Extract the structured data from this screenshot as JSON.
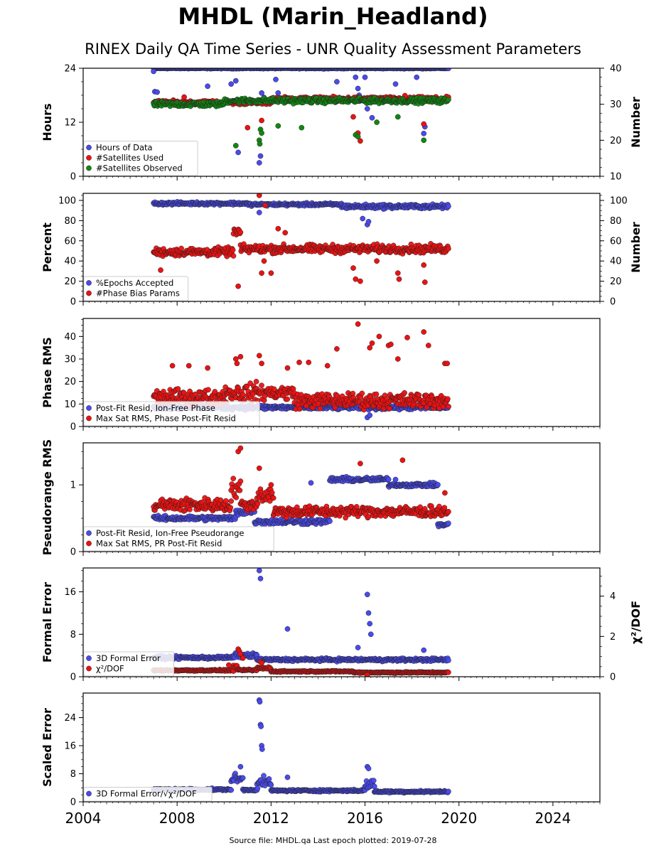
{
  "title": "MHDL (Marin_Headland)",
  "subtitle": "RINEX Daily QA Time Series - UNR Quality Assessment Parameters",
  "footer": "Source file: MHDL.qa Last epoch plotted: 2019-07-28",
  "colors": {
    "blue": "#4a4af0",
    "red": "#ee1111",
    "green": "#118811"
  },
  "chart_data": [
    {
      "type": "scatter",
      "ylabel": "Hours",
      "y2label": "Number",
      "xlim": [
        2004,
        2026
      ],
      "ylim": [
        0,
        24
      ],
      "y2lim": [
        10,
        40
      ],
      "yticks": [
        "0",
        "12",
        "24"
      ],
      "y2ticks": [
        "10",
        "20",
        "30",
        "40"
      ],
      "legend_position": "lower-left",
      "series": [
        {
          "name": "Hours of Data",
          "color": "blue",
          "axis": "left",
          "segments": [
            [
              2007.0,
              2019.55,
              24.0,
              0.15
            ]
          ],
          "outliers": [
            [
              2007.0,
              23.3
            ],
            [
              2007.05,
              18.8
            ],
            [
              2007.15,
              18.7
            ],
            [
              2009.3,
              20.0
            ],
            [
              2010.3,
              20.5
            ],
            [
              2010.5,
              21.2
            ],
            [
              2010.6,
              5.3
            ],
            [
              2011.5,
              3.0
            ],
            [
              2011.55,
              4.5
            ],
            [
              2011.6,
              18.5
            ],
            [
              2011.7,
              17.5
            ],
            [
              2012.2,
              21.5
            ],
            [
              2012.3,
              18.5
            ],
            [
              2014.8,
              21.0
            ],
            [
              2015.6,
              22.0
            ],
            [
              2015.7,
              19.5
            ],
            [
              2015.75,
              18.0
            ],
            [
              2016.0,
              22.0
            ],
            [
              2016.1,
              15.0
            ],
            [
              2016.3,
              13.0
            ],
            [
              2017.3,
              20.5
            ],
            [
              2018.2,
              22.0
            ],
            [
              2018.5,
              9.5
            ],
            [
              2018.55,
              11.0
            ]
          ]
        },
        {
          "name": "#Satellites Used",
          "color": "red",
          "axis": "right",
          "segments": [
            [
              2007.0,
              2012.0,
              30.5,
              0.8
            ],
            [
              2012.0,
              2019.55,
              31.5,
              0.8
            ]
          ],
          "outliers": [
            [
              2008.3,
              32.0
            ],
            [
              2011.0,
              23.5
            ],
            [
              2011.6,
              25.5
            ],
            [
              2015.5,
              26.5
            ],
            [
              2015.7,
              22.0
            ],
            [
              2015.8,
              19.8
            ],
            [
              2017.7,
              32.4
            ],
            [
              2018.5,
              24.5
            ]
          ]
        },
        {
          "name": "#Satellites Observed",
          "color": "green",
          "axis": "right",
          "segments": [
            [
              2007.0,
              2010.0,
              30.0,
              1.0
            ],
            [
              2010.0,
              2019.55,
              31.0,
              1.0
            ]
          ],
          "outliers": [
            [
              2010.5,
              18.5
            ],
            [
              2011.5,
              20.0
            ],
            [
              2011.52,
              19.0
            ],
            [
              2011.55,
              23.0
            ],
            [
              2011.6,
              22.0
            ],
            [
              2012.3,
              24.0
            ],
            [
              2013.3,
              23.5
            ],
            [
              2015.6,
              21.5
            ],
            [
              2015.7,
              21.0
            ],
            [
              2016.5,
              25.0
            ],
            [
              2017.4,
              26.5
            ],
            [
              2018.5,
              20.0
            ]
          ]
        }
      ]
    },
    {
      "type": "scatter",
      "ylabel": "Percent",
      "y2label": "Number",
      "xlim": [
        2004,
        2026
      ],
      "ylim": [
        0,
        107
      ],
      "y2lim": [
        0,
        107
      ],
      "yticks": [
        "0",
        "20",
        "40",
        "60",
        "80",
        "100"
      ],
      "y2ticks": [
        "0",
        "20",
        "40",
        "60",
        "80",
        "100"
      ],
      "legend_position": "lower-left",
      "series": [
        {
          "name": "%Epochs Accepted",
          "color": "blue",
          "axis": "left",
          "segments": [
            [
              2007.0,
              2011.0,
              97.0,
              2.0
            ],
            [
              2011.0,
              2015.0,
              96.0,
              2.0
            ],
            [
              2015.0,
              2019.55,
              94.0,
              3.0
            ]
          ],
          "outliers": [
            [
              2011.5,
              88.0
            ],
            [
              2015.9,
              82.0
            ],
            [
              2016.1,
              76.0
            ],
            [
              2016.15,
              79.0
            ]
          ]
        },
        {
          "name": "#Phase Bias Params",
          "color": "red",
          "axis": "right",
          "segments": [
            [
              2007.0,
              2010.4,
              49.0,
              6.0
            ],
            [
              2010.4,
              2010.7,
              68.0,
              10.0
            ],
            [
              2010.7,
              2019.55,
              52.0,
              6.0
            ]
          ],
          "outliers": [
            [
              2007.3,
              31.0
            ],
            [
              2010.6,
              15.0
            ],
            [
              2011.5,
              105.0
            ],
            [
              2011.6,
              28.0
            ],
            [
              2011.7,
              40.0
            ],
            [
              2011.75,
              95.0
            ],
            [
              2012.0,
              28.0
            ],
            [
              2012.3,
              72.0
            ],
            [
              2012.6,
              68.0
            ],
            [
              2015.5,
              33.0
            ],
            [
              2015.6,
              22.0
            ],
            [
              2015.8,
              20.0
            ],
            [
              2016.5,
              40.0
            ],
            [
              2017.4,
              28.0
            ],
            [
              2017.45,
              22.0
            ],
            [
              2018.5,
              36.0
            ],
            [
              2018.55,
              19.0
            ]
          ]
        }
      ]
    },
    {
      "type": "scatter",
      "ylabel": "Phase RMS",
      "xlim": [
        2004,
        2026
      ],
      "ylim": [
        0,
        48
      ],
      "yticks": [
        "0",
        "10",
        "20",
        "30",
        "40"
      ],
      "legend_position": "lower-left",
      "series": [
        {
          "name": "Post-Fit Resid, Ion-Free Phase",
          "color": "blue",
          "axis": "left",
          "segments": [
            [
              2007.0,
              2019.55,
              8.5,
              1.5
            ]
          ],
          "outliers": [
            [
              2016.1,
              4.0
            ],
            [
              2016.2,
              5.0
            ]
          ]
        },
        {
          "name": "Max Sat RMS, Phase Post-Fit Resid",
          "color": "red",
          "axis": "left",
          "segments": [
            [
              2007.0,
              2010.0,
              13.0,
              5.0
            ],
            [
              2010.0,
              2011.4,
              15.0,
              6.0
            ],
            [
              2011.4,
              2013.0,
              15.0,
              5.0
            ],
            [
              2013.0,
              2019.55,
              11.5,
              5.0
            ]
          ],
          "outliers": [
            [
              2007.8,
              27.0
            ],
            [
              2008.5,
              27.0
            ],
            [
              2009.3,
              26.0
            ],
            [
              2010.5,
              30.0
            ],
            [
              2010.55,
              28.0
            ],
            [
              2010.7,
              31.0
            ],
            [
              2011.5,
              31.5
            ],
            [
              2011.6,
              28.0
            ],
            [
              2012.7,
              26.0
            ],
            [
              2013.2,
              28.5
            ],
            [
              2013.6,
              28.5
            ],
            [
              2014.4,
              27.0
            ],
            [
              2014.8,
              34.5
            ],
            [
              2015.7,
              45.5
            ],
            [
              2016.2,
              35.0
            ],
            [
              2016.3,
              37.0
            ],
            [
              2016.6,
              40.0
            ],
            [
              2017.0,
              36.0
            ],
            [
              2017.1,
              36.5
            ],
            [
              2017.8,
              39.5
            ],
            [
              2017.4,
              30.0
            ],
            [
              2018.5,
              42.0
            ],
            [
              2018.7,
              36.0
            ],
            [
              2019.4,
              28.0
            ],
            [
              2019.5,
              28.0
            ]
          ]
        }
      ]
    },
    {
      "type": "scatter",
      "ylabel": "Pseudorange RMS",
      "xlim": [
        2004,
        2026
      ],
      "ylim": [
        0,
        1.63
      ],
      "yticks": [
        "0",
        "1"
      ],
      "legend_position": "lower-left",
      "series": [
        {
          "name": "Post-Fit Resid, Ion-Free Pseudorange",
          "color": "blue",
          "axis": "left",
          "segments": [
            [
              2007.0,
              2010.5,
              0.5,
              0.05
            ],
            [
              2010.5,
              2011.3,
              0.6,
              0.08
            ],
            [
              2011.3,
              2014.5,
              0.45,
              0.06
            ],
            [
              2014.5,
              2017.0,
              1.08,
              0.05
            ],
            [
              2017.0,
              2019.1,
              1.0,
              0.04
            ],
            [
              2019.1,
              2019.55,
              0.4,
              0.04
            ]
          ],
          "outliers": [
            [
              2013.7,
              1.03
            ],
            [
              2017.3,
              1.08
            ]
          ]
        },
        {
          "name": "Max Sat RMS, PR Post-Fit Resid",
          "color": "red",
          "axis": "left",
          "segments": [
            [
              2007.0,
              2010.3,
              0.7,
              0.15
            ],
            [
              2010.3,
              2010.7,
              0.95,
              0.2
            ],
            [
              2010.7,
              2011.4,
              0.7,
              0.12
            ],
            [
              2011.4,
              2012.1,
              0.85,
              0.2
            ],
            [
              2012.1,
              2019.55,
              0.6,
              0.12
            ]
          ],
          "outliers": [
            [
              2010.6,
              1.5
            ],
            [
              2010.7,
              1.55
            ],
            [
              2011.5,
              1.25
            ],
            [
              2012.0,
              1.0
            ],
            [
              2015.8,
              1.32
            ],
            [
              2017.6,
              1.37
            ],
            [
              2019.4,
              0.88
            ]
          ]
        }
      ]
    },
    {
      "type": "scatter",
      "ylabel": "Formal Error",
      "y2label": "χ²/DOF",
      "xlim": [
        2004,
        2026
      ],
      "ylim": [
        0,
        20.5
      ],
      "y2lim": [
        0,
        5.4
      ],
      "yticks": [
        "0",
        "8",
        "16"
      ],
      "y2ticks": [
        "0",
        "2",
        "4"
      ],
      "legend_position": "lower-left",
      "series": [
        {
          "name": "3D Formal Error",
          "color": "blue",
          "axis": "left",
          "segments": [
            [
              2007.0,
              2010.4,
              3.6,
              0.4
            ],
            [
              2010.4,
              2011.4,
              4.0,
              0.6
            ],
            [
              2011.4,
              2019.55,
              3.2,
              0.4
            ]
          ],
          "outliers": [
            [
              2011.5,
              20.0
            ],
            [
              2011.55,
              18.5
            ],
            [
              2012.7,
              9.0
            ],
            [
              2015.7,
              5.5
            ],
            [
              2016.1,
              15.5
            ],
            [
              2016.15,
              12.0
            ],
            [
              2016.2,
              10.0
            ],
            [
              2016.25,
              8.0
            ],
            [
              2018.5,
              5.0
            ]
          ]
        },
        {
          "name": "χ²/DOF",
          "color": "red",
          "axis": "left",
          "segments": [
            [
              2007.0,
              2010.4,
              1.2,
              0.2
            ],
            [
              2010.4,
              2010.55,
              2.0,
              0.4
            ],
            [
              2010.55,
              2011.4,
              1.25,
              0.2
            ],
            [
              2011.4,
              2012.0,
              1.6,
              0.4
            ],
            [
              2012.0,
              2015.5,
              1.0,
              0.18
            ],
            [
              2015.5,
              2019.55,
              0.8,
              0.18
            ]
          ],
          "outliers": [
            [
              2010.6,
              5.2
            ],
            [
              2010.65,
              4.8
            ],
            [
              2010.7,
              4.3
            ],
            [
              2010.8,
              3.5
            ],
            [
              2011.55,
              2.8
            ],
            [
              2011.6,
              2.6
            ],
            [
              2010.2,
              2.2
            ],
            [
              2016.1,
              0.3
            ]
          ]
        }
      ]
    },
    {
      "type": "scatter",
      "ylabel": "Scaled Error",
      "xlim": [
        2004,
        2026
      ],
      "ylim": [
        0,
        31
      ],
      "yticks": [
        "0",
        "8",
        "16",
        "24"
      ],
      "xticks": [
        "2004",
        "2008",
        "2012",
        "2016",
        "2020",
        "2024"
      ],
      "legend_position": "lower-left",
      "series": [
        {
          "name": "3D Formal Error/√χ²/DOF",
          "color": "blue",
          "axis": "left",
          "segments": [
            [
              2007.0,
              2010.3,
              3.5,
              0.4
            ],
            [
              2010.3,
              2010.8,
              6.5,
              2.0
            ],
            [
              2010.8,
              2011.4,
              3.4,
              0.4
            ],
            [
              2011.4,
              2012.0,
              5.5,
              2.0
            ],
            [
              2012.0,
              2016.0,
              3.2,
              0.4
            ],
            [
              2016.0,
              2016.4,
              5.0,
              2.0
            ],
            [
              2016.4,
              2019.55,
              2.9,
              0.4
            ]
          ],
          "outliers": [
            [
              2011.5,
              29.0
            ],
            [
              2011.52,
              28.5
            ],
            [
              2011.55,
              22.0
            ],
            [
              2011.57,
              21.5
            ],
            [
              2011.6,
              16.0
            ],
            [
              2011.62,
              15.0
            ],
            [
              2010.7,
              10.0
            ],
            [
              2012.7,
              7.0
            ],
            [
              2016.1,
              10.0
            ],
            [
              2016.15,
              9.5
            ]
          ]
        }
      ]
    }
  ]
}
